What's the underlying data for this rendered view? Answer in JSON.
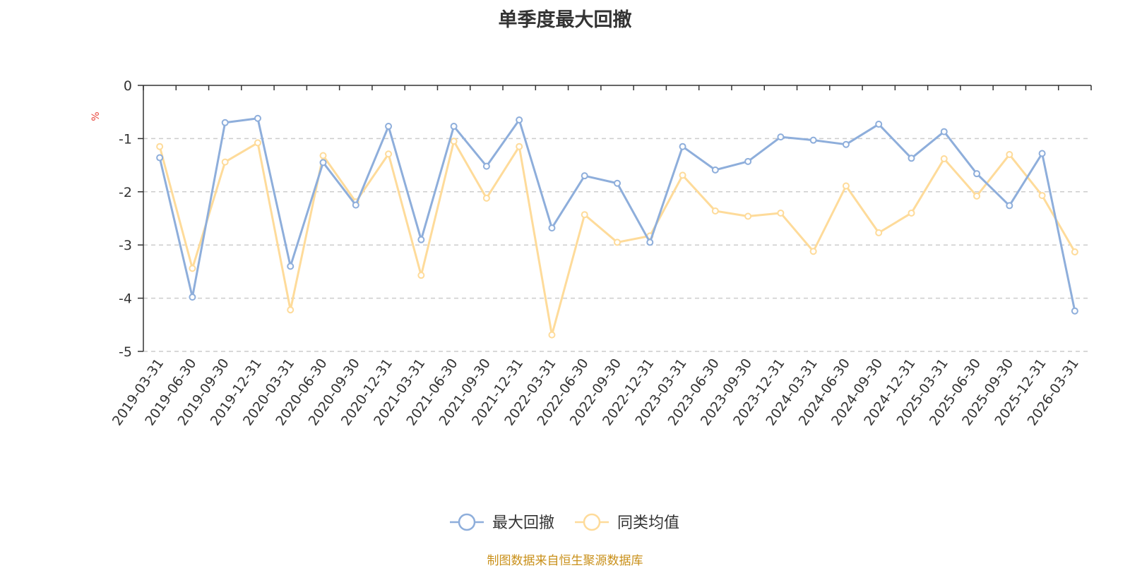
{
  "chart_data": {
    "type": "line",
    "title": "单季度最大回撤",
    "ylabel": "%",
    "xlabel": "",
    "ylim": [
      -5,
      0
    ],
    "yticks": [
      0,
      -1,
      -2,
      -3,
      -4,
      -5
    ],
    "grid": true,
    "categories": [
      "2019-03-31",
      "2019-06-30",
      "2019-09-30",
      "2019-12-31",
      "2020-03-31",
      "2020-06-30",
      "2020-09-30",
      "2020-12-31",
      "2021-03-31",
      "2021-06-30",
      "2021-09-30",
      "2021-12-31",
      "2022-03-31",
      "2022-06-30",
      "2022-09-30",
      "2022-12-31",
      "2023-03-31",
      "2023-06-30",
      "2023-09-30",
      "2023-12-31",
      "2024-03-31",
      "2024-06-30",
      "2024-09-30",
      "2024-12-31",
      "2025-03-31",
      "2025-06-30",
      "2025-09-30",
      "2025-12-31",
      "2026-03-31"
    ],
    "series": [
      {
        "name": "最大回撤",
        "color": "#8eaedb",
        "values": [
          -1.36,
          -3.98,
          -0.7,
          -0.62,
          -3.4,
          -1.45,
          -2.25,
          -0.77,
          -2.9,
          -0.77,
          -1.52,
          -0.65,
          -2.68,
          -1.7,
          -1.84,
          -2.95,
          -1.15,
          -1.59,
          -1.43,
          -0.97,
          -1.03,
          -1.11,
          -0.73,
          -1.37,
          -0.87,
          -1.66,
          -2.26,
          -1.28,
          -4.24
        ]
      },
      {
        "name": "同类均值",
        "color": "#fedb9a",
        "values": [
          -1.15,
          -3.44,
          -1.44,
          -1.08,
          -4.22,
          -1.32,
          -2.19,
          -1.29,
          -3.57,
          -1.05,
          -2.12,
          -1.15,
          -4.69,
          -2.43,
          -2.95,
          -2.83,
          -1.69,
          -2.36,
          -2.46,
          -2.4,
          -3.12,
          -1.89,
          -2.77,
          -2.4,
          -1.38,
          -2.08,
          -1.3,
          -2.07,
          -3.13
        ]
      }
    ],
    "legend_position": "bottom-center"
  },
  "footer": {
    "source": "制图数据来自恒生聚源数据库"
  }
}
